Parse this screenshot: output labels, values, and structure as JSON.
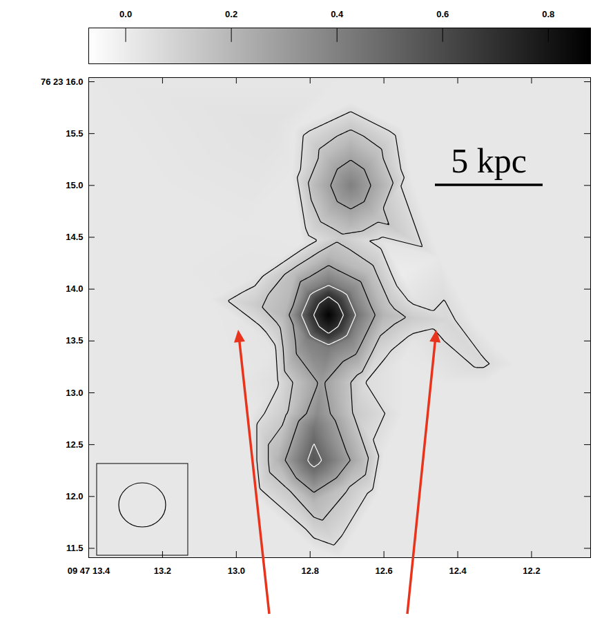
{
  "chart_data": {
    "type": "heatmap",
    "xlim": [
      13.4,
      12.04
    ],
    "ylim": [
      11.41,
      16.04
    ],
    "xticks": [
      {
        "value": 13.4,
        "label": "09 47 13.4"
      },
      13.2,
      {
        "value": 13,
        "label": "13.0"
      },
      12.8,
      12.6,
      12.4,
      12.2
    ],
    "yticks": [
      {
        "value": 16,
        "label": "76 23 16.0"
      },
      15.5,
      {
        "value": 15,
        "label": "15.0"
      },
      14.5,
      {
        "value": 14,
        "label": "14.0"
      },
      13.5,
      {
        "value": 13,
        "label": "13.0"
      },
      12.5,
      {
        "value": 12,
        "label": "12.0"
      },
      11.5
    ],
    "colorbar": {
      "range": [
        -0.07,
        0.88
      ],
      "ticks": [
        {
          "value": 0,
          "label": "0.0"
        },
        0.2,
        0.4,
        0.6,
        0.8
      ],
      "colors": [
        "#ffffff",
        "#000000"
      ]
    },
    "contours": {
      "levels": [
        0.06,
        0.14,
        0.28,
        0.5,
        0.7
      ],
      "colors": [
        "#000000",
        "#000000",
        "#000000",
        "#ffffff",
        "#ffffff"
      ]
    },
    "annotations": [
      "5 kpc"
    ],
    "cells": [
      [
        12.75,
        13.75,
        0.87
      ],
      [
        12.8,
        13.75,
        0.66
      ],
      [
        12.7,
        13.75,
        0.66
      ],
      [
        12.75,
        13.97,
        0.66
      ],
      [
        12.75,
        13.53,
        0.66
      ],
      [
        12.785,
        13.9,
        0.64
      ],
      [
        12.715,
        13.9,
        0.64
      ],
      [
        12.785,
        13.6,
        0.64
      ],
      [
        12.715,
        13.6,
        0.64
      ],
      [
        12.835,
        13.75,
        0.42
      ],
      [
        12.665,
        13.75,
        0.42
      ],
      [
        12.75,
        14.07,
        0.42
      ],
      [
        12.75,
        13.43,
        0.42
      ],
      [
        12.81,
        13.98,
        0.4
      ],
      [
        12.69,
        13.98,
        0.4
      ],
      [
        12.81,
        13.52,
        0.4
      ],
      [
        12.69,
        13.52,
        0.4
      ],
      [
        12.87,
        13.75,
        0.2
      ],
      [
        12.6,
        13.75,
        0.2
      ],
      [
        12.75,
        14.32,
        0.2
      ],
      [
        12.84,
        14.15,
        0.18
      ],
      [
        12.64,
        14.15,
        0.18
      ],
      [
        12.95,
        13.85,
        0.12
      ],
      [
        13.0,
        13.88,
        0.08
      ],
      [
        13.07,
        13.9,
        0.02
      ],
      [
        12.95,
        14.12,
        0.03
      ],
      [
        12.93,
        13.55,
        0.03
      ],
      [
        12.52,
        13.72,
        0.12
      ],
      [
        12.43,
        13.7,
        0.08
      ],
      [
        12.36,
        13.7,
        0.02
      ],
      [
        12.52,
        13.92,
        0.03
      ],
      [
        12.52,
        13.5,
        0.03
      ],
      [
        12.72,
        14.5,
        0.12
      ],
      [
        12.82,
        14.45,
        0.02
      ],
      [
        12.6,
        14.45,
        0.03
      ],
      [
        12.69,
        15.0,
        0.4
      ],
      [
        12.79,
        15.0,
        0.18
      ],
      [
        12.59,
        15.0,
        0.18
      ],
      [
        12.69,
        15.45,
        0.18
      ],
      [
        12.69,
        14.62,
        0.2
      ],
      [
        12.76,
        15.3,
        0.17
      ],
      [
        12.62,
        15.3,
        0.17
      ],
      [
        12.76,
        14.7,
        0.17
      ],
      [
        12.62,
        14.7,
        0.17
      ],
      [
        12.69,
        15.8,
        0.02
      ],
      [
        12.85,
        15.1,
        0.02
      ],
      [
        12.53,
        15.1,
        0.02
      ],
      [
        12.84,
        15.55,
        0.02
      ],
      [
        12.55,
        15.55,
        0.02
      ],
      [
        12.77,
        13.1,
        0.3
      ],
      [
        12.78,
        12.8,
        0.36
      ],
      [
        12.89,
        13.1,
        0.05
      ],
      [
        12.65,
        13.1,
        0.06
      ],
      [
        12.62,
        13.35,
        0.08
      ],
      [
        12.55,
        13.3,
        0.02
      ],
      [
        12.9,
        13.4,
        0.03
      ],
      [
        12.87,
        12.8,
        0.12
      ],
      [
        12.68,
        12.8,
        0.13
      ],
      [
        12.79,
        12.35,
        0.56
      ],
      [
        12.89,
        12.35,
        0.2
      ],
      [
        12.67,
        12.35,
        0.22
      ],
      [
        12.79,
        11.95,
        0.2
      ],
      [
        12.79,
        12.65,
        0.45
      ],
      [
        12.86,
        12.1,
        0.15
      ],
      [
        12.7,
        12.1,
        0.15
      ],
      [
        12.96,
        12.35,
        0.02
      ],
      [
        12.6,
        12.4,
        0.02
      ],
      [
        12.79,
        11.5,
        0.02
      ],
      [
        12.95,
        12.0,
        0.02
      ],
      [
        12.62,
        12.0,
        0.02
      ],
      [
        12.96,
        12.8,
        0.02
      ],
      [
        12.55,
        12.8,
        0.02
      ],
      [
        12.33,
        13.28,
        0.07
      ],
      [
        13.4,
        16.04,
        0.02
      ],
      [
        12.04,
        16.04,
        0.02
      ],
      [
        13.4,
        11.41,
        0.02
      ],
      [
        12.04,
        11.41,
        0.02
      ],
      [
        12.72,
        16.04,
        0.02
      ],
      [
        12.72,
        11.41,
        0.02
      ],
      [
        13.4,
        13.75,
        0.02
      ],
      [
        12.04,
        13.75,
        0.02
      ],
      [
        13.2,
        15.0,
        0.02
      ],
      [
        12.25,
        15.0,
        0.02
      ],
      [
        13.2,
        12.5,
        0.02
      ],
      [
        12.25,
        12.3,
        0.02
      ],
      [
        13.15,
        14.2,
        0.02
      ],
      [
        12.2,
        13.9,
        0.02
      ],
      [
        12.98,
        14.6,
        0.02
      ],
      [
        12.45,
        14.3,
        0.02
      ],
      [
        13.0,
        13.1,
        0.02
      ],
      [
        12.45,
        13.1,
        0.02
      ],
      [
        12.3,
        13.45,
        0.02
      ],
      [
        12.33,
        13.1,
        0.02
      ],
      [
        12.25,
        13.28,
        0.02
      ],
      [
        12.55,
        14.15,
        0.0
      ],
      [
        12.9,
        15.6,
        0.04
      ]
    ]
  }
}
